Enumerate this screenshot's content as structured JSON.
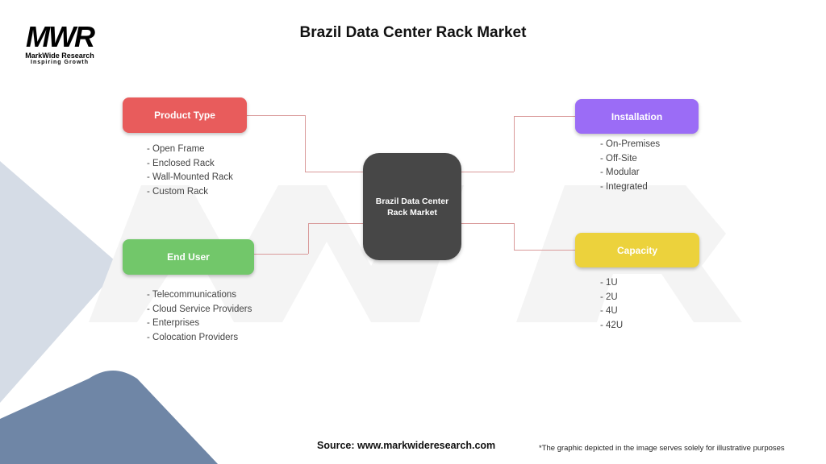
{
  "logo": {
    "mark": "MWR",
    "name": "MarkWide Research",
    "tagline": "Inspiring Growth"
  },
  "title": "Brazil Data Center Rack Market",
  "center": {
    "label": "Brazil Data Center Rack Market"
  },
  "categories": [
    {
      "label": "Product Type",
      "color": "#e85c5c",
      "items": [
        "- Open Frame",
        "- Enclosed Rack",
        "- Wall-Mounted Rack",
        "- Custom Rack"
      ]
    },
    {
      "label": "End User",
      "color": "#72c76a",
      "items": [
        "- Telecommunications",
        "- Cloud Service Providers",
        "- Enterprises",
        "- Colocation Providers"
      ]
    },
    {
      "label": "Installation",
      "color": "#9b6cf6",
      "items": [
        "- On-Premises",
        "- Off-Site",
        "- Modular",
        "- Integrated"
      ]
    },
    {
      "label": "Capacity",
      "color": "#ecd23c",
      "items": [
        "- 1U",
        "- 2U",
        "- 4U",
        "- 42U"
      ]
    }
  ],
  "footer": {
    "source": "Source: www.markwideresearch.com",
    "disclaimer": "*The graphic depicted in the image serves solely for illustrative purposes"
  }
}
